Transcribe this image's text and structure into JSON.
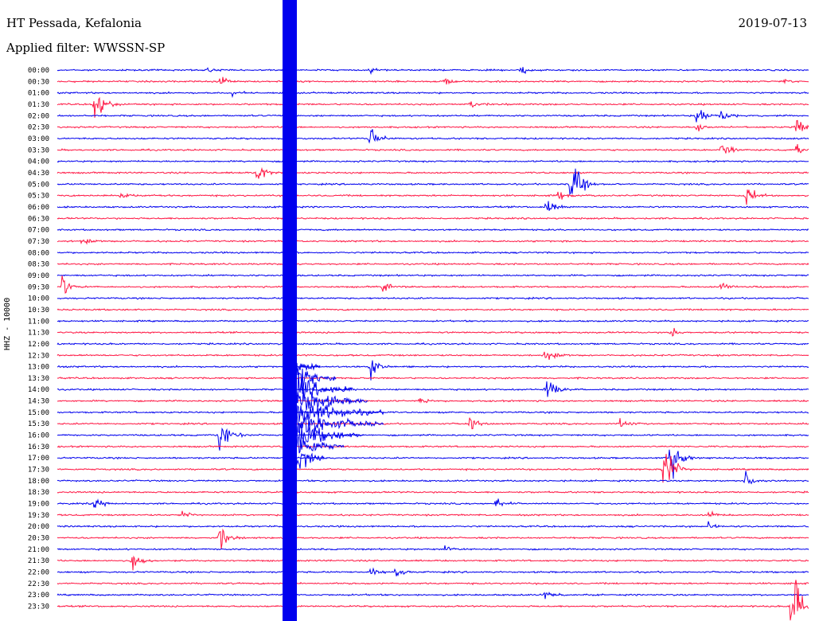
{
  "header": {
    "station": "HT Pessada, Kefalonia",
    "filter": "Applied filter: WWSSN-SP",
    "date": "2019-07-13"
  },
  "chart_data": {
    "type": "line",
    "title": "HT Pessada, Kefalonia",
    "subtitle": "Applied filter: WWSSN-SP",
    "ylabel": "HHZ - 10000",
    "colors": [
      "#0000ee",
      "#ff1744"
    ],
    "rows": [
      "00:00",
      "00:30",
      "01:00",
      "01:30",
      "02:00",
      "02:30",
      "03:00",
      "03:30",
      "04:00",
      "04:30",
      "05:00",
      "05:30",
      "06:00",
      "06:30",
      "07:00",
      "07:30",
      "08:00",
      "08:30",
      "09:00",
      "09:30",
      "10:00",
      "10:30",
      "11:00",
      "11:30",
      "12:00",
      "12:30",
      "13:00",
      "13:30",
      "14:00",
      "14:30",
      "15:00",
      "15:30",
      "16:00",
      "16:30",
      "17:00",
      "17:30",
      "18:00",
      "18:30",
      "19:00",
      "19:30",
      "20:00",
      "20:30",
      "21:00",
      "21:30",
      "22:00",
      "22:30",
      "23:00",
      "23:30"
    ],
    "events": [
      {
        "row": 0,
        "minute": 6,
        "amp": 0.15
      },
      {
        "row": 0,
        "minute": 12.5,
        "amp": 0.15
      },
      {
        "row": 0,
        "minute": 18.5,
        "amp": 0.2
      },
      {
        "row": 1,
        "minute": 6.5,
        "amp": 0.35
      },
      {
        "row": 1,
        "minute": 15.5,
        "amp": 0.3
      },
      {
        "row": 1,
        "minute": 29,
        "amp": 0.15
      },
      {
        "row": 2,
        "minute": 7,
        "amp": 0.3
      },
      {
        "row": 3,
        "minute": 1.5,
        "amp": 1.0
      },
      {
        "row": 3,
        "minute": 16.5,
        "amp": 0.25
      },
      {
        "row": 4,
        "minute": 25.5,
        "amp": 0.6
      },
      {
        "row": 4,
        "minute": 26.5,
        "amp": 0.4
      },
      {
        "row": 5,
        "minute": 25.5,
        "amp": 0.3
      },
      {
        "row": 5,
        "minute": 29.5,
        "amp": 0.45
      },
      {
        "row": 6,
        "minute": 12.5,
        "amp": 0.6
      },
      {
        "row": 7,
        "minute": 26.5,
        "amp": 0.5
      },
      {
        "row": 7,
        "minute": 29.5,
        "amp": 0.35
      },
      {
        "row": 9,
        "minute": 8,
        "amp": 0.5
      },
      {
        "row": 10,
        "minute": 20.5,
        "amp": 1.7
      },
      {
        "row": 11,
        "minute": 2.5,
        "amp": 0.3
      },
      {
        "row": 11,
        "minute": 20,
        "amp": 0.4
      },
      {
        "row": 11,
        "minute": 27.5,
        "amp": 0.6
      },
      {
        "row": 12,
        "minute": 19.5,
        "amp": 0.45
      },
      {
        "row": 15,
        "minute": 1,
        "amp": 0.25
      },
      {
        "row": 19,
        "minute": 0.2,
        "amp": 0.5
      },
      {
        "row": 19,
        "minute": 13,
        "amp": 0.25
      },
      {
        "row": 19,
        "minute": 26.5,
        "amp": 0.25
      },
      {
        "row": 23,
        "minute": 24.5,
        "amp": 0.3
      },
      {
        "row": 25,
        "minute": 19.5,
        "amp": 0.5
      },
      {
        "row": 26,
        "minute": 12.5,
        "amp": 0.5
      },
      {
        "row": 28,
        "minute": 19.5,
        "amp": 0.7
      },
      {
        "row": 28,
        "minute": 11.5,
        "amp": 0.2
      },
      {
        "row": 29,
        "minute": 14.5,
        "amp": 0.25
      },
      {
        "row": 31,
        "minute": 16.5,
        "amp": 0.3
      },
      {
        "row": 31,
        "minute": 22.5,
        "amp": 0.3
      },
      {
        "row": 32,
        "minute": 6.5,
        "amp": 1.4
      },
      {
        "row": 34,
        "minute": 24.5,
        "amp": 1.2
      },
      {
        "row": 35,
        "minute": 24.2,
        "amp": 1.6
      },
      {
        "row": 36,
        "minute": 27.5,
        "amp": 0.5
      },
      {
        "row": 38,
        "minute": 1.5,
        "amp": 0.3
      },
      {
        "row": 38,
        "minute": 17.5,
        "amp": 0.3
      },
      {
        "row": 39,
        "minute": 5,
        "amp": 0.2
      },
      {
        "row": 39,
        "minute": 26,
        "amp": 0.2
      },
      {
        "row": 40,
        "minute": 26,
        "amp": 0.2
      },
      {
        "row": 41,
        "minute": 6.5,
        "amp": 0.5
      },
      {
        "row": 42,
        "minute": 15.5,
        "amp": 0.3
      },
      {
        "row": 43,
        "minute": 3,
        "amp": 0.35
      },
      {
        "row": 44,
        "minute": 12.5,
        "amp": 0.3
      },
      {
        "row": 44,
        "minute": 13.5,
        "amp": 0.35
      },
      {
        "row": 46,
        "minute": 19.5,
        "amp": 0.3
      },
      {
        "row": 47,
        "minute": 29.3,
        "amp": 2.4
      }
    ]
  }
}
